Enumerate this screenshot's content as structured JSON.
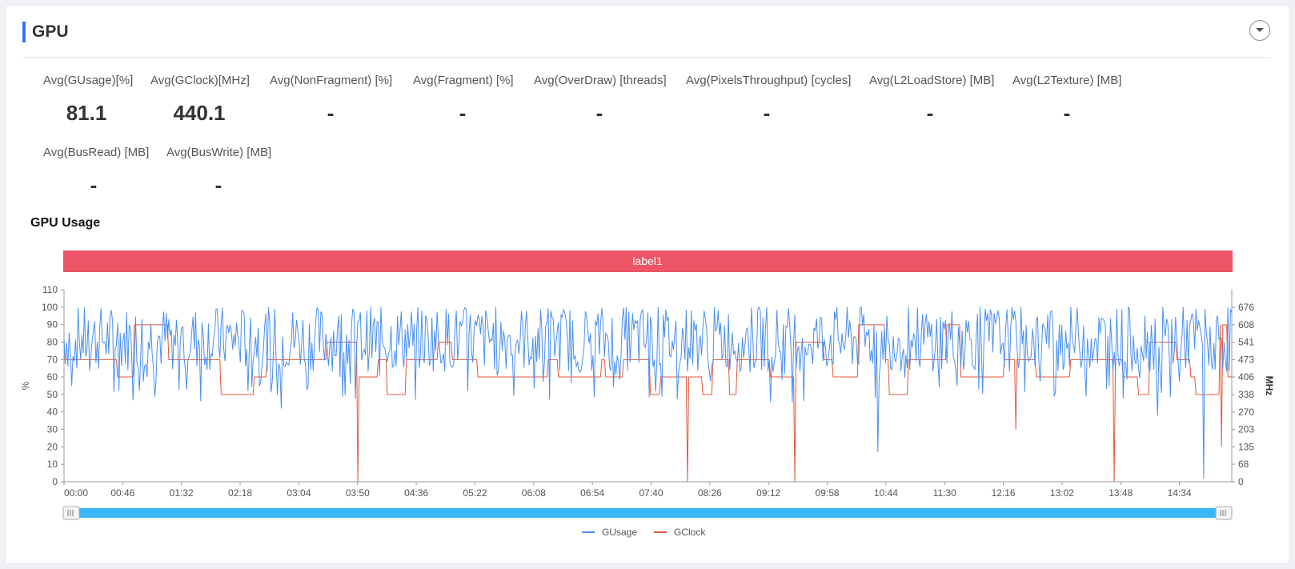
{
  "section": {
    "title": "GPU"
  },
  "metrics": [
    {
      "label": "Avg(GUsage)[%]",
      "value": "81.1"
    },
    {
      "label": "Avg(GClock)[MHz]",
      "value": "440.1"
    },
    {
      "label": "Avg(NonFragment) [%]",
      "value": "-"
    },
    {
      "label": "Avg(Fragment) [%]",
      "value": "-"
    },
    {
      "label": "Avg(OverDraw) [threads]",
      "value": "-"
    },
    {
      "label": "Avg(PixelsThroughput) [cycles]",
      "value": "-"
    },
    {
      "label": "Avg(L2LoadStore) [MB]",
      "value": "-"
    },
    {
      "label": "Avg(L2Texture) [MB]",
      "value": "-"
    },
    {
      "label": "Avg(BusRead) [MB]",
      "value": "-"
    },
    {
      "label": "Avg(BusWrite) [MB]",
      "value": "-"
    }
  ],
  "chart_data": {
    "type": "line",
    "title": "GPU Usage",
    "band_label": "label1",
    "colors": {
      "band": "#eb5565",
      "gusage": "#4a90f0",
      "gclock": "#e4573a",
      "slider": "#38b6f5"
    },
    "x_tick_labels": [
      "00:00",
      "00:46",
      "01:32",
      "02:18",
      "03:04",
      "03:50",
      "04:36",
      "05:22",
      "06:08",
      "06:54",
      "07:40",
      "08:26",
      "09:12",
      "09:58",
      "10:44",
      "11:30",
      "12:16",
      "13:02",
      "13:48",
      "14:34"
    ],
    "x_range_seconds": [
      0,
      915
    ],
    "y_left": {
      "label": "%",
      "min": 0,
      "max": 110,
      "ticks": [
        0,
        10,
        20,
        30,
        40,
        50,
        60,
        70,
        80,
        90,
        100,
        110
      ]
    },
    "y_right": {
      "label": "MHz",
      "min": 0,
      "max": 744,
      "ticks": [
        0,
        68,
        135,
        203,
        270,
        338,
        406,
        473,
        541,
        608,
        676
      ]
    },
    "series": [
      {
        "name": "GUsage",
        "axis": "left",
        "base_level": 82,
        "min_level": 45,
        "max_level": 100,
        "dips": [
          [
            892,
            2
          ],
          [
            856,
            38
          ],
          [
            637,
            17
          ],
          [
            170,
            42
          ]
        ]
      },
      {
        "name": "GClock",
        "axis": "right",
        "levels": [
          338,
          406,
          473,
          541,
          608
        ],
        "dips": [
          [
            230,
            0
          ],
          [
            488,
            0
          ],
          [
            572,
            0
          ],
          [
            822,
            0
          ],
          [
            906,
            135
          ],
          [
            745,
            203
          ]
        ]
      }
    ],
    "legend": [
      "GUsage",
      "GClock"
    ],
    "legend_position": "bottom-center",
    "zoom_slider": {
      "start": 0,
      "end": 100
    }
  }
}
